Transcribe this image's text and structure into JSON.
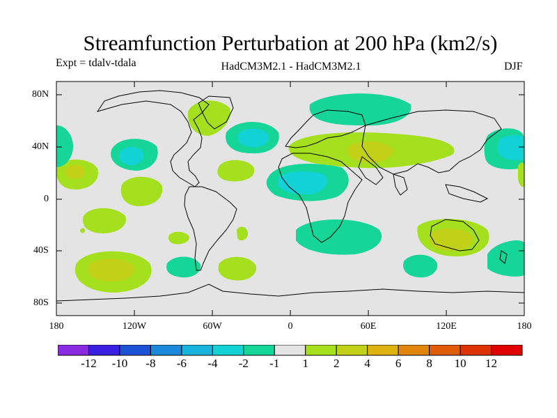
{
  "title": "Streamfunction Perturbation at 200 hPa (km2/s)",
  "left_subtitle": "Expt = tdalv-tdala",
  "center_subtitle": "HadCM3M2.1 - HadCM3M2.1",
  "right_subtitle": "DJF",
  "axes": {
    "y_labels": [
      "80N",
      "40N",
      "0",
      "40S",
      "80S"
    ],
    "x_labels": [
      "180",
      "120W",
      "60W",
      "0",
      "60E",
      "120E",
      "180"
    ]
  },
  "colorbar": {
    "labels": [
      "-12",
      "-10",
      "-8",
      "-6",
      "-4",
      "-2",
      "-1",
      "1",
      "2",
      "4",
      "6",
      "8",
      "10",
      "12"
    ],
    "colors": [
      "#8a2be2",
      "#3b1fe0",
      "#1e52d6",
      "#1a88db",
      "#17b3dd",
      "#13d2d6",
      "#15d597",
      "#e4e4e4",
      "#a4e01e",
      "#c2d117",
      "#dfb30f",
      "#e2860b",
      "#e05b07",
      "#dc3305",
      "#df0101"
    ]
  },
  "map": {
    "background": "#e4e4e4",
    "coastline_color": "#000000"
  }
}
